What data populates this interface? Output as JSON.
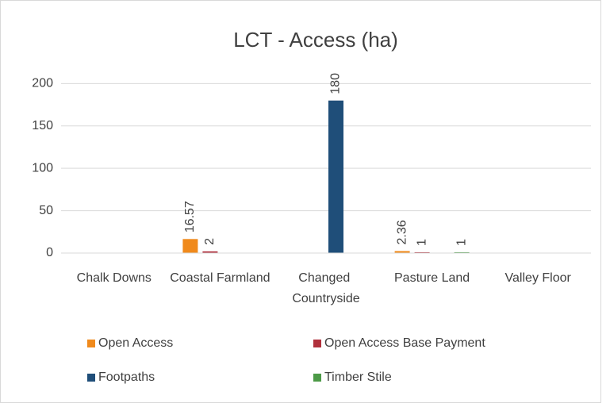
{
  "chart_data": {
    "type": "bar",
    "title": "LCT - Access (ha)",
    "categories": [
      "Chalk Downs",
      "Coastal Farmland",
      "Changed Countryside",
      "Pasture Land",
      "Valley Floor"
    ],
    "series": [
      {
        "name": "Open Access",
        "color": "#f08a1c",
        "values": [
          null,
          16.57,
          null,
          2.36,
          null
        ]
      },
      {
        "name": "Open Access Base Payment",
        "color": "#b0303c",
        "values": [
          null,
          2,
          null,
          1,
          null
        ]
      },
      {
        "name": "Footpaths",
        "color": "#1f4e79",
        "values": [
          null,
          null,
          180,
          null,
          null
        ]
      },
      {
        "name": "Timber Stile",
        "color": "#4c9a47",
        "values": [
          null,
          null,
          null,
          1,
          null
        ]
      }
    ],
    "ylim": [
      0,
      220
    ],
    "yticks": [
      0,
      50,
      100,
      150,
      200
    ],
    "grid": true,
    "legend": "bottom"
  }
}
